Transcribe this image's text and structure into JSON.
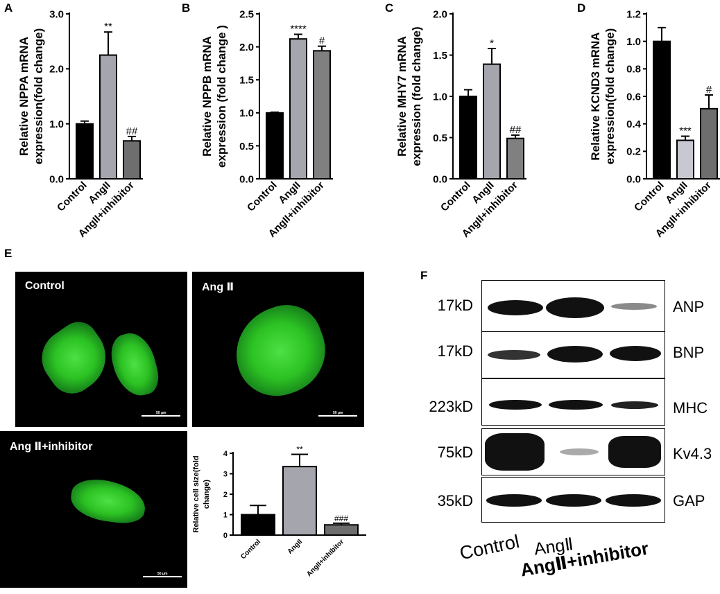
{
  "panel_labels": [
    "A",
    "B",
    "C",
    "D",
    "E",
    "F"
  ],
  "chart_data": [
    {
      "type": "bar",
      "categories": [
        "Control",
        "AngII",
        "AngII+inhibitor"
      ],
      "values": [
        1.0,
        2.25,
        0.69
      ],
      "errors": [
        0.05,
        0.42,
        0.08
      ],
      "significance": [
        "",
        "**",
        "##"
      ],
      "ylabel": "Relative NPPA mRNA expression(fold change)",
      "ylim": [
        0,
        3.0
      ],
      "yticks": [
        "0.0",
        "1.0",
        "2.0",
        "3.0"
      ],
      "colors": [
        "#000000",
        "#a5a5ad",
        "#6e6e6e"
      ]
    },
    {
      "type": "bar",
      "categories": [
        "Control",
        "AngII",
        "AngII+inhibitor"
      ],
      "values": [
        1.0,
        2.12,
        1.94
      ],
      "errors": [
        0.01,
        0.07,
        0.07
      ],
      "significance": [
        "",
        "****",
        "#"
      ],
      "ylabel": "Relative NPPB mRNA expression (fold change )",
      "ylim": [
        0,
        2.5
      ],
      "yticks": [
        "0.0",
        "0.5",
        "1.0",
        "1.5",
        "2.0",
        "2.5"
      ],
      "colors": [
        "#000000",
        "#a5a5ad",
        "#808080"
      ]
    },
    {
      "type": "bar",
      "categories": [
        "Control",
        "AngII",
        "AngII+inhibitor"
      ],
      "values": [
        1.0,
        1.39,
        0.49
      ],
      "errors": [
        0.08,
        0.19,
        0.04
      ],
      "significance": [
        "",
        "*",
        "##"
      ],
      "ylabel": "Relative MHY7 mRNA expression (fold change)",
      "ylim": [
        0,
        2.0
      ],
      "yticks": [
        "0.0",
        "0.5",
        "1.0",
        "1.5",
        "2.0"
      ],
      "colors": [
        "#000000",
        "#a5a5ad",
        "#808080"
      ]
    },
    {
      "type": "bar",
      "categories": [
        "Control",
        "AngII",
        "AngII+inhibitor"
      ],
      "values": [
        1.0,
        0.28,
        0.51
      ],
      "errors": [
        0.1,
        0.03,
        0.1
      ],
      "significance": [
        "",
        "***",
        "#"
      ],
      "ylabel": "Relative KCND3 mRNA expression(fold change)",
      "ylim": [
        0,
        1.2
      ],
      "yticks": [
        "0.0",
        "0.2",
        "0.4",
        "0.6",
        "0.8",
        "1.0",
        "1.2"
      ],
      "colors": [
        "#000000",
        "#c8c8d0",
        "#6e6e6e"
      ]
    },
    {
      "type": "bar",
      "categories": [
        "Control",
        "AngII",
        "AngII+inhibitor"
      ],
      "values": [
        1.0,
        3.35,
        0.5
      ],
      "errors": [
        0.45,
        0.6,
        0.08
      ],
      "significance": [
        "",
        "**",
        "###"
      ],
      "ylabel": "Relative cell size(fold change)",
      "ylim": [
        0,
        4
      ],
      "yticks": [
        "0",
        "1",
        "2",
        "3",
        "4"
      ],
      "colors": [
        "#000000",
        "#a5a5ad",
        "#6e6e6e"
      ]
    }
  ],
  "micrographs": {
    "labels": [
      "Control",
      "Ang Ⅱ",
      "Ang Ⅱ+inhibitor"
    ],
    "scale_text": "50 μm"
  },
  "western": {
    "rows": [
      {
        "kd": "17kD",
        "protein": "ANP"
      },
      {
        "kd": "17kD",
        "protein": "BNP"
      },
      {
        "kd": "223kD",
        "protein": "MHC"
      },
      {
        "kd": "75kD",
        "protein": "Kv4.3"
      },
      {
        "kd": "35kD",
        "protein": "GAP"
      }
    ],
    "lanes": [
      "Control",
      "AngⅡ",
      "AngⅡ+inhibitor"
    ]
  }
}
